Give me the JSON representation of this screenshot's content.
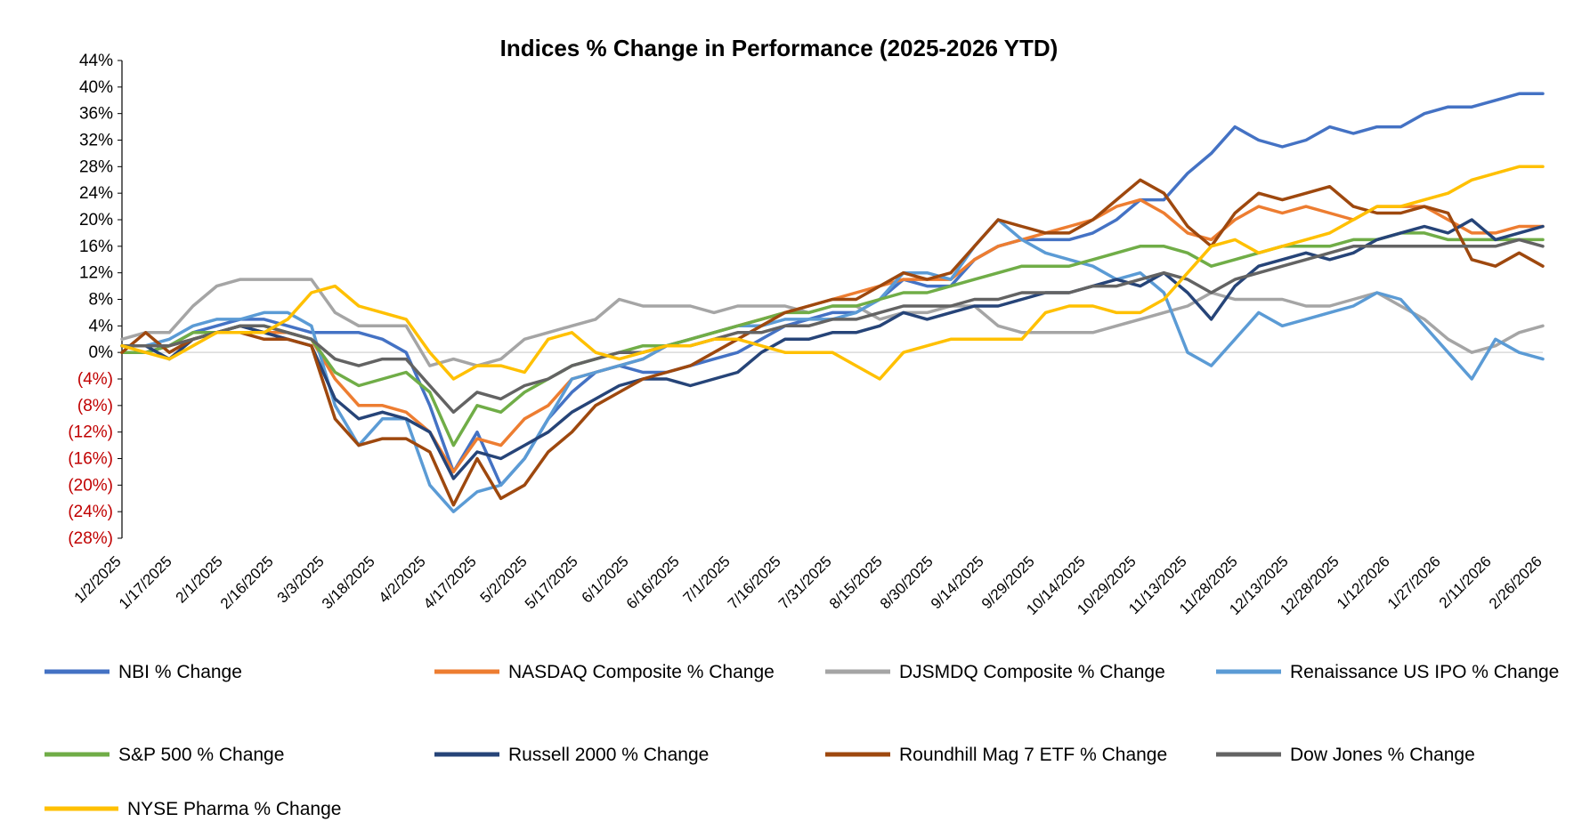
{
  "chart_data": {
    "type": "line",
    "title": "Indices % Change in Performance (2025-2026 YTD)",
    "xlabel": "",
    "ylabel": "",
    "ylim": [
      -28,
      44
    ],
    "yticks": [
      44,
      40,
      36,
      32,
      28,
      24,
      20,
      16,
      12,
      8,
      4,
      0,
      -4,
      -8,
      -12,
      -16,
      -20,
      -24,
      -28
    ],
    "ytick_labels": [
      "44%",
      "40%",
      "36%",
      "32%",
      "28%",
      "24%",
      "20%",
      "16%",
      "12%",
      "8%",
      "4%",
      "0%",
      "(4%)",
      "(8%)",
      "(12%)",
      "(16%)",
      "(20%)",
      "(24%)",
      "(28%)"
    ],
    "negative_tick_color": "#c00000",
    "x_tick_labels": [
      "1/2/2025",
      "1/17/2025",
      "2/1/2025",
      "2/16/2025",
      "3/3/2025",
      "3/18/2025",
      "4/2/2025",
      "4/17/2025",
      "5/2/2025",
      "5/17/2025",
      "6/1/2025",
      "6/16/2025",
      "7/1/2025",
      "7/16/2025",
      "7/31/2025",
      "8/15/2025",
      "8/30/2025",
      "9/14/2025",
      "9/29/2025",
      "10/14/2025",
      "10/29/2025",
      "11/13/2025",
      "11/28/2025",
      "12/13/2025",
      "12/28/2025",
      "1/12/2026",
      "1/27/2026",
      "2/11/2026",
      "2/26/2026"
    ],
    "x": [
      "1/2/2025",
      "1/9/2025",
      "1/17/2025",
      "1/24/2025",
      "2/1/2025",
      "2/8/2025",
      "2/16/2025",
      "2/23/2025",
      "3/3/2025",
      "3/10/2025",
      "3/18/2025",
      "3/25/2025",
      "4/2/2025",
      "4/4/2025",
      "4/8/2025",
      "4/10/2025",
      "4/17/2025",
      "4/21/2025",
      "4/25/2025",
      "5/2/2025",
      "5/9/2025",
      "5/17/2025",
      "5/24/2025",
      "6/1/2025",
      "6/8/2025",
      "6/16/2025",
      "6/23/2025",
      "7/1/2025",
      "7/8/2025",
      "7/16/2025",
      "7/23/2025",
      "7/31/2025",
      "8/7/2025",
      "8/15/2025",
      "8/22/2025",
      "8/30/2025",
      "9/6/2025",
      "9/14/2025",
      "9/21/2025",
      "9/29/2025",
      "10/6/2025",
      "10/14/2025",
      "10/21/2025",
      "10/29/2025",
      "11/5/2025",
      "11/13/2025",
      "11/20/2025",
      "11/28/2025",
      "12/5/2025",
      "12/13/2025",
      "12/20/2025",
      "12/28/2025",
      "1/4/2026",
      "1/12/2026",
      "1/19/2026",
      "1/27/2026",
      "2/3/2026",
      "2/11/2026",
      "2/18/2026",
      "2/26/2026",
      "3/2/2026"
    ],
    "legend_position": "bottom",
    "grid": false,
    "series": [
      {
        "name": "NBI % Change",
        "color": "#4472c4",
        "values": [
          0,
          0,
          1,
          3,
          4,
          5,
          5,
          4,
          3,
          3,
          3,
          2,
          0,
          -8,
          -18,
          -12,
          -20,
          -16,
          -10,
          -6,
          -3,
          -2,
          -3,
          -3,
          -2,
          -1,
          0,
          2,
          4,
          5,
          6,
          6,
          8,
          11,
          10,
          10,
          14,
          16,
          17,
          17,
          17,
          18,
          20,
          23,
          23,
          27,
          30,
          34,
          32,
          31,
          32,
          34,
          33,
          34,
          34,
          36,
          37,
          37,
          38,
          39,
          39
        ]
      },
      {
        "name": "NASDAQ Composite % Change",
        "color": "#ed7d31",
        "values": [
          0,
          0,
          1,
          2,
          3,
          4,
          3,
          3,
          2,
          -4,
          -8,
          -8,
          -9,
          -12,
          -18,
          -13,
          -14,
          -10,
          -8,
          -4,
          -3,
          -2,
          -1,
          1,
          2,
          3,
          4,
          5,
          6,
          7,
          8,
          9,
          10,
          11,
          11,
          11,
          14,
          16,
          17,
          18,
          19,
          20,
          22,
          23,
          21,
          18,
          17,
          20,
          22,
          21,
          22,
          21,
          20,
          22,
          22,
          22,
          20,
          18,
          18,
          19,
          19
        ]
      },
      {
        "name": "DJSMDQ Composite % Change",
        "color": "#a5a5a5",
        "values": [
          2,
          3,
          3,
          7,
          10,
          11,
          11,
          11,
          11,
          6,
          4,
          4,
          4,
          -2,
          -1,
          -2,
          -1,
          2,
          3,
          4,
          5,
          8,
          7,
          7,
          7,
          6,
          7,
          7,
          7,
          6,
          7,
          7,
          5,
          6,
          6,
          7,
          7,
          4,
          3,
          3,
          3,
          3,
          4,
          5,
          6,
          7,
          9,
          8,
          8,
          8,
          7,
          7,
          8,
          9,
          7,
          5,
          2,
          0,
          1,
          3,
          4
        ]
      },
      {
        "name": "Renaissance US IPO % Change",
        "color": "#5b9bd5",
        "values": [
          1,
          1,
          2,
          4,
          5,
          5,
          6,
          6,
          4,
          -8,
          -14,
          -10,
          -10,
          -20,
          -24,
          -21,
          -20,
          -16,
          -10,
          -4,
          -3,
          -2,
          -1,
          1,
          2,
          3,
          4,
          4,
          5,
          5,
          5,
          6,
          8,
          12,
          12,
          11,
          16,
          20,
          17,
          15,
          14,
          13,
          11,
          12,
          9,
          0,
          -2,
          2,
          6,
          4,
          5,
          6,
          7,
          9,
          8,
          4,
          0,
          -4,
          2,
          0,
          -1
        ]
      },
      {
        "name": "S&P 500 % Change",
        "color": "#70ad47",
        "values": [
          0,
          0,
          1,
          3,
          3,
          4,
          4,
          3,
          2,
          -3,
          -5,
          -4,
          -3,
          -6,
          -14,
          -8,
          -9,
          -6,
          -4,
          -2,
          -1,
          0,
          1,
          1,
          2,
          3,
          4,
          5,
          6,
          6,
          7,
          7,
          8,
          9,
          9,
          10,
          11,
          12,
          13,
          13,
          13,
          14,
          15,
          16,
          16,
          15,
          13,
          14,
          15,
          16,
          16,
          16,
          17,
          17,
          18,
          18,
          17,
          17,
          17,
          17,
          17
        ]
      },
      {
        "name": "Russell 2000 % Change",
        "color": "#264478",
        "values": [
          1,
          1,
          -1,
          2,
          3,
          4,
          3,
          2,
          1,
          -7,
          -10,
          -9,
          -10,
          -12,
          -19,
          -15,
          -16,
          -14,
          -12,
          -9,
          -7,
          -5,
          -4,
          -4,
          -5,
          -4,
          -3,
          0,
          2,
          2,
          3,
          3,
          4,
          6,
          5,
          6,
          7,
          7,
          8,
          9,
          9,
          10,
          11,
          10,
          12,
          9,
          5,
          10,
          13,
          14,
          15,
          14,
          15,
          17,
          18,
          19,
          18,
          20,
          17,
          18,
          19
        ]
      },
      {
        "name": "Roundhill Mag 7 ETF % Change",
        "color": "#9e480e",
        "values": [
          0,
          3,
          0,
          2,
          3,
          3,
          2,
          2,
          1,
          -10,
          -14,
          -13,
          -13,
          -15,
          -23,
          -16,
          -22,
          -20,
          -15,
          -12,
          -8,
          -6,
          -4,
          -3,
          -2,
          0,
          2,
          4,
          6,
          7,
          8,
          8,
          10,
          12,
          11,
          12,
          16,
          20,
          19,
          18,
          18,
          20,
          23,
          26,
          24,
          19,
          16,
          21,
          24,
          23,
          24,
          25,
          22,
          21,
          21,
          22,
          21,
          14,
          13,
          15,
          13
        ]
      },
      {
        "name": "Dow Jones % Change",
        "color": "#636363",
        "values": [
          1,
          1,
          1,
          2,
          3,
          4,
          4,
          3,
          2,
          -1,
          -2,
          -1,
          -1,
          -5,
          -9,
          -6,
          -7,
          -5,
          -4,
          -2,
          -1,
          0,
          0,
          1,
          1,
          2,
          3,
          3,
          4,
          4,
          5,
          5,
          6,
          7,
          7,
          7,
          8,
          8,
          9,
          9,
          9,
          10,
          10,
          11,
          12,
          11,
          9,
          11,
          12,
          13,
          14,
          15,
          16,
          16,
          16,
          16,
          16,
          16,
          16,
          17,
          16
        ]
      },
      {
        "name": "NYSE Pharma % Change",
        "color": "#ffc000",
        "values": [
          1,
          0,
          -1,
          1,
          3,
          3,
          3,
          5,
          9,
          10,
          7,
          6,
          5,
          0,
          -4,
          -2,
          -2,
          -3,
          2,
          3,
          0,
          -1,
          0,
          1,
          1,
          2,
          2,
          1,
          0,
          0,
          0,
          -2,
          -4,
          0,
          1,
          2,
          2,
          2,
          2,
          6,
          7,
          7,
          6,
          6,
          8,
          12,
          16,
          17,
          15,
          16,
          17,
          18,
          20,
          22,
          22,
          23,
          24,
          26,
          27,
          28,
          28
        ]
      }
    ]
  }
}
